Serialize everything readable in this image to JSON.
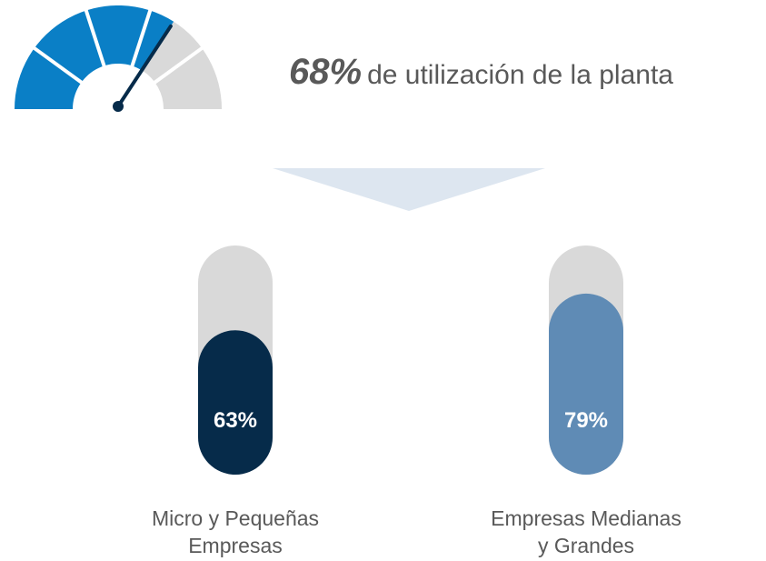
{
  "chart_data": [
    {
      "type": "gauge",
      "value": 68,
      "value_label": "68%",
      "label": "de utilización de la planta",
      "ylim": [
        0,
        100
      ],
      "color": "#0a7fc6",
      "track_color": "#d9d9d9",
      "segments": 5
    },
    {
      "type": "bar",
      "categories": [
        "Micro  y Pequeñas\nEmpresas",
        "Empresas Medianas\ny Grandes"
      ],
      "values": [
        63,
        79
      ],
      "value_labels": [
        "63%",
        "79%"
      ],
      "colors": [
        "#062b4a",
        "#5f8bb5"
      ],
      "track_color": "#d9d9d9",
      "ylim": [
        0,
        100
      ]
    }
  ]
}
